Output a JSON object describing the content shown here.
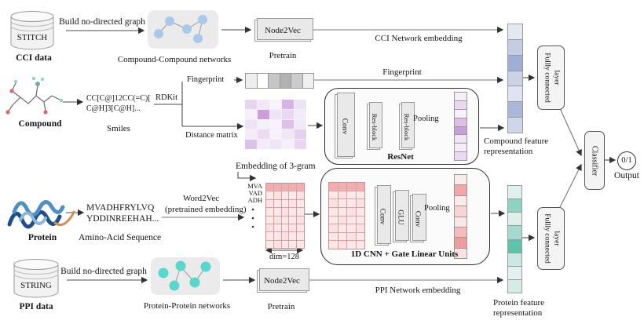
{
  "cci": {
    "db": "STITCH",
    "db_label": "CCI data",
    "build_arrow": "Build no-directed graph",
    "network_label": "Compound-Compound networks",
    "node2vec": "Node2Vec",
    "pretrain": "Pretrain",
    "embedding_label": "CCI Network embedding"
  },
  "compound": {
    "label": "Compound",
    "smiles1": "CC[C@]12CC(=C)[",
    "smiles2": "C@H]3[C@H]...",
    "smiles_label": "Smiles",
    "rdkit": "RDKit",
    "fingerprint_branch": "Fingerprint",
    "distance_branch": "Distance matrix",
    "fingerprint_long": "Fingerprint",
    "conv": "Conv",
    "res1": "Res-block",
    "res2": "Res-block",
    "pooling": "Pooling",
    "resnet_title": "ResNet",
    "feature1": "Compound feature",
    "feature2": "representation"
  },
  "protein": {
    "label": "Protein",
    "seq1": "MVADHFRYLVQ",
    "seq2": "YDDINREEHAH...",
    "seq_label": "Amino-Acid Sequence",
    "word2vec1": "Word2Vec",
    "word2vec2": "(pretrained embedding)",
    "embedding_title": "Embedding of  3-gram",
    "gram1": "MVA",
    "gram2": "VAD",
    "gram3": "ADH",
    "dim": "dim=128",
    "conv1": "Conv",
    "glu": "GLU",
    "conv2": "Conv",
    "pooling": "Pooling",
    "cnn_title": "1D CNN + Gate Linear Units",
    "feature1": "Protein feature",
    "feature2": "representation"
  },
  "ppi": {
    "db": "STRING",
    "db_label": "PPI data",
    "build_arrow": "Build no-directed graph",
    "network_label": "Protein-Protein networks",
    "node2vec": "Node2Vec",
    "pretrain": "Pretrain",
    "embedding_label": "PPI Network embedding"
  },
  "output": {
    "fc1_line1": "Fullly connected",
    "fc1_line2": "layer",
    "fc2_line1": "Fullly connected",
    "fc2_line2": "layer",
    "classifier": "Classifier",
    "result": "0/1",
    "label": "Output"
  },
  "palette": {
    "compound_node": "#a9c9ea",
    "protein_node": "#58d8cd",
    "fingerprint_cells": [
      "#ededed",
      "#ffffff",
      "#c6c6c6",
      "#b2b2b2",
      "#cbcbcb",
      "#f0f0f0"
    ],
    "resnet_out_cells": [
      "#f5eef9",
      "#e9d9f1",
      "#f7f1fa",
      "#dcc0e8",
      "#c79fd9",
      "#f0e5f6",
      "#f4edf8",
      "#ead9f1"
    ],
    "blue_cells": [
      "#e4e8f2",
      "#c4cde4",
      "#9dafd4",
      "#c9d2e7",
      "#dfe4f0",
      "#a9b7db",
      "#cfd6e9"
    ],
    "cnn_out_cells": [
      "#fcebeb",
      "#f2a6a6",
      "#fcebeb",
      "#f8d4d4",
      "#fbe6e6",
      "#f5bcbc",
      "#ef9c9c",
      "#fae2e2"
    ],
    "teal_cells": [
      "#e0f0ec",
      "#8ed2c1",
      "#def0eb",
      "#a5dbce",
      "#5fc2aa",
      "#c8e8e1",
      "#e2f1ed",
      "#d7ebe6"
    ],
    "distance_matrix": [
      [
        "#e7d4ef",
        "#f2e7f7",
        "#f8f2fb",
        "#d6b4e5",
        "#eee3f5"
      ],
      [
        "#f6f0fa",
        "#c9a0dc",
        "#efe4f6",
        "#e9d8f1",
        "#f3ecf8"
      ],
      [
        "#eee2f5",
        "#f6f0fa",
        "#f8f3fb",
        "#dbc0e8",
        "#f1e9f7"
      ],
      [
        "#f4edf9",
        "#ebdcf2",
        "#f8f3fb",
        "#f0e6f6",
        "#e5d0ee"
      ],
      [
        "#dcc2e9",
        "#f3ebf8",
        "#f0e5f6",
        "#f6f0fa",
        "#e9d6f0"
      ]
    ],
    "protein_embedding_matrix": [
      [
        "#f1aeae",
        "#f1aeae",
        "#f1aeae",
        "#f1aeae",
        "#f1aeae"
      ],
      [
        "#fce8e8",
        "#fae2e2",
        "#fce8e8",
        "#fce8e8",
        "#fae2e2"
      ],
      [
        "#fae2e2",
        "#fce8e8",
        "#fce8e8",
        "#fae2e2",
        "#fce8e8"
      ],
      [
        "#fce8e8",
        "#fce8e8",
        "#fae2e2",
        "#fce8e8",
        "#fce8e8"
      ],
      [
        "#fce8e8",
        "#fae2e2",
        "#fce8e8",
        "#fce8e8",
        "#fae2e2"
      ],
      [
        "#fae2e2",
        "#fce8e8",
        "#fce8e8",
        "#fae2e2",
        "#fce8e8"
      ],
      [
        "#fce8e8",
        "#fce8e8",
        "#fae2e2",
        "#fce8e8",
        "#fce8e8"
      ],
      [
        "#fce8e8",
        "#fae2e2",
        "#fce8e8",
        "#fce8e8",
        "#fce8e8"
      ]
    ],
    "cnn_inner_matrix": [
      [
        "#f1aeae",
        "#f1aeae",
        "#f1aeae",
        "#f1aeae"
      ],
      [
        "#fce8e8",
        "#fae2e2",
        "#fce8e8",
        "#fce8e8"
      ],
      [
        "#fae2e2",
        "#fce8e8",
        "#fce8e8",
        "#fae2e2"
      ],
      [
        "#fce8e8",
        "#fce8e8",
        "#fae2e2",
        "#fce8e8"
      ],
      [
        "#fce8e8",
        "#fae2e2",
        "#fce8e8",
        "#fce8e8"
      ],
      [
        "#fae2e2",
        "#fce8e8",
        "#fce8e8",
        "#fae2e2"
      ],
      [
        "#fce8e8",
        "#fce8e8",
        "#fae2e2",
        "#fce8e8"
      ],
      [
        "#fce8e8",
        "#fae2e2",
        "#fce8e8",
        "#fce8e8"
      ]
    ]
  }
}
